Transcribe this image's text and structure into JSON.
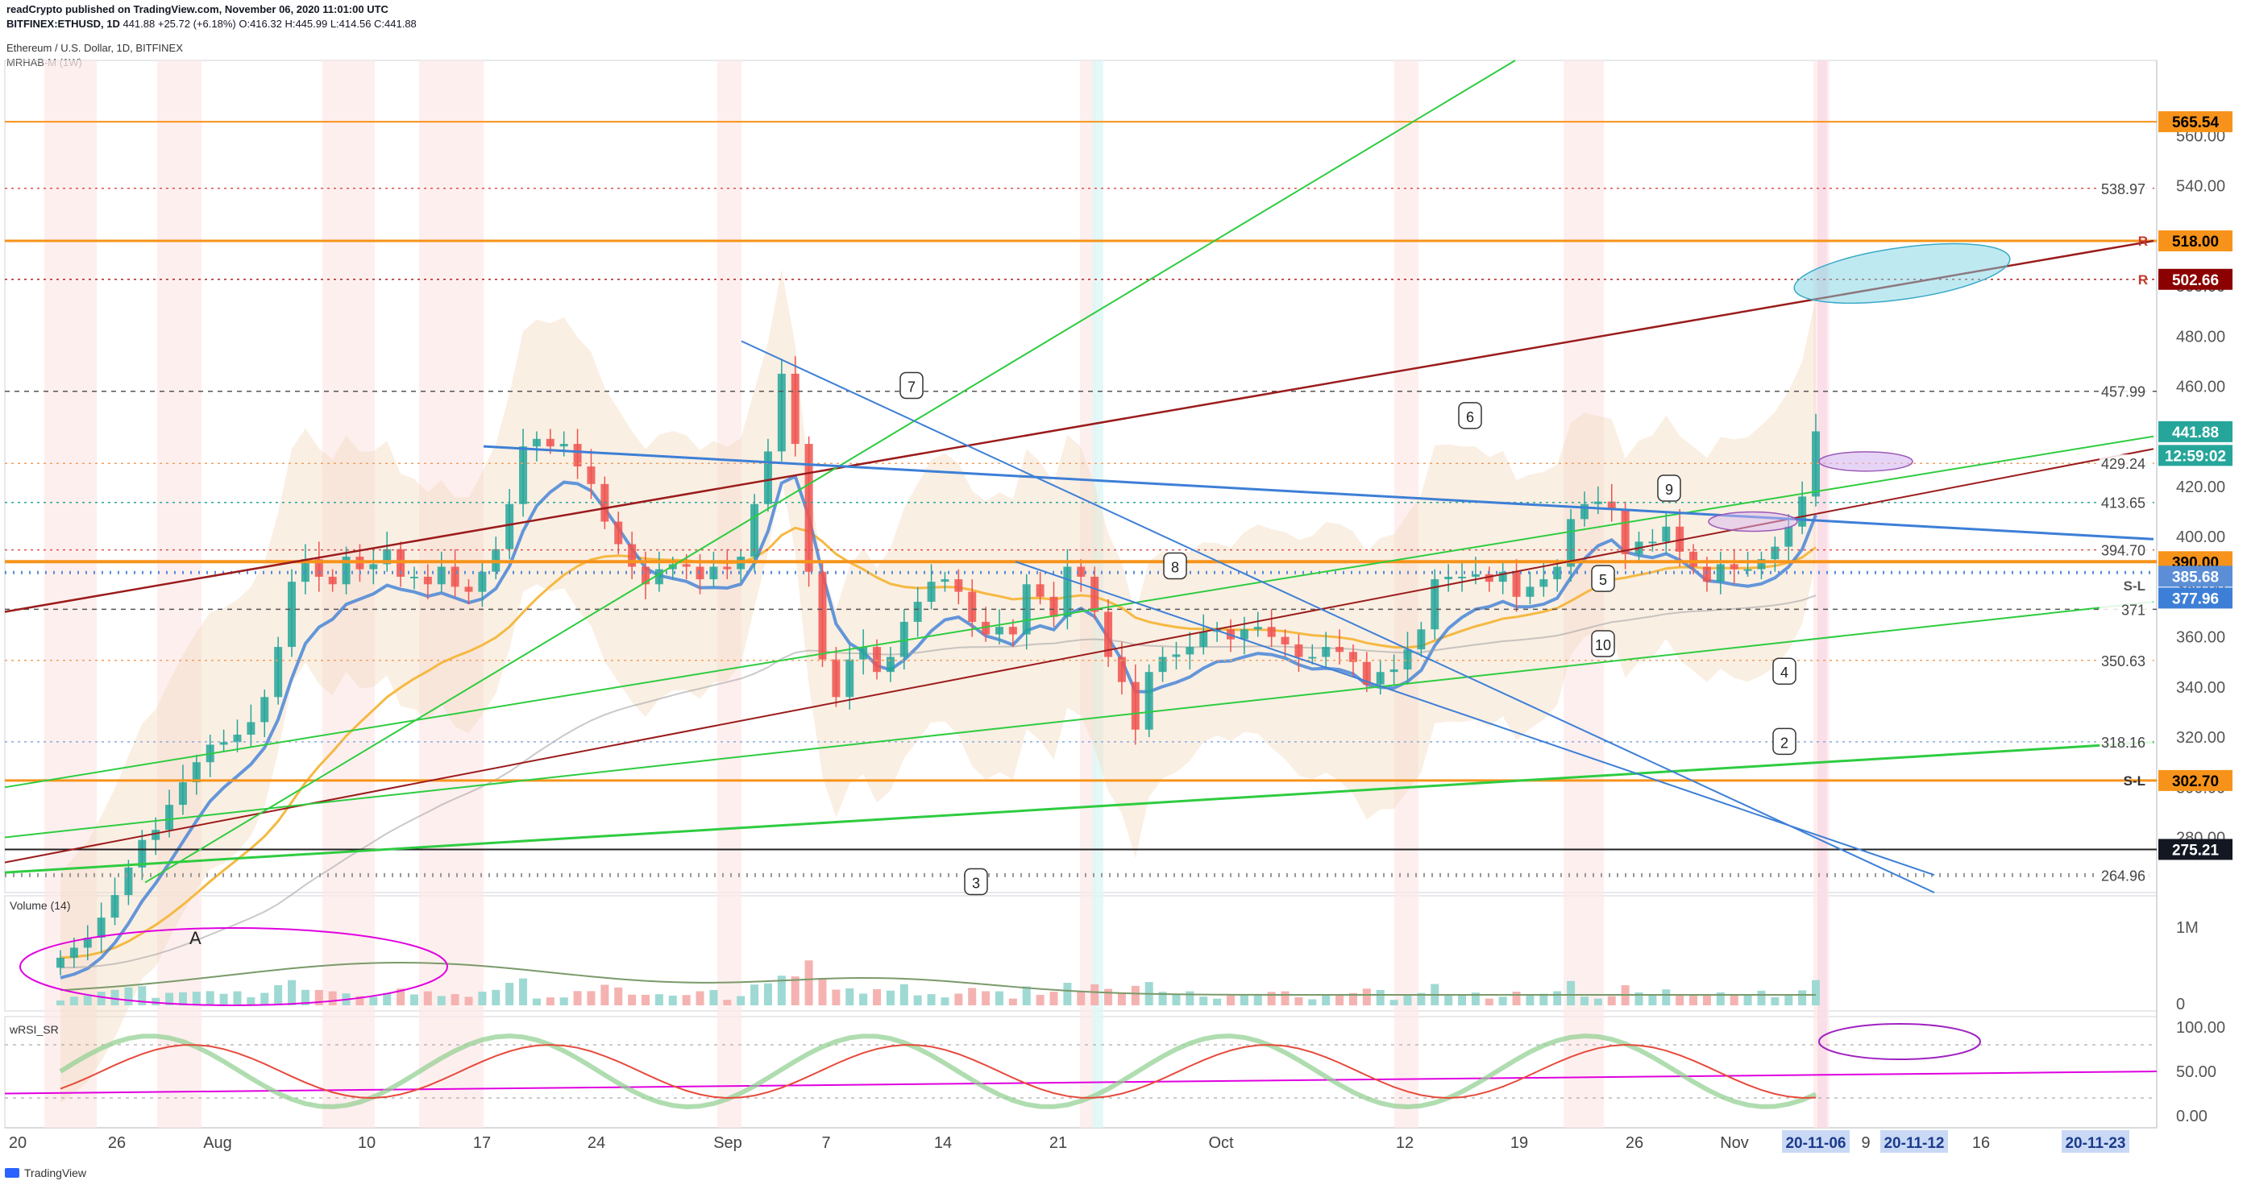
{
  "header": {
    "publisher": "readCrypto published on TradingView.com, November 06, 2020 11:01:00 UTC",
    "symbol": "BITFINEX:ETHUSD, 1D",
    "price": "441.88",
    "change": "+25.72 (+6.18%)",
    "ohlc": "O:416.32 H:445.99 L:414.56 C:441.88",
    "title": "Ethereum / U.S. Dollar, 1D, BITFINEX",
    "indicator": "MRHAB-M (1W)"
  },
  "footer": {
    "brand": "TradingView"
  },
  "panes": {
    "volume_label": "Volume (14)",
    "rsi_label": "wRSI_SR"
  },
  "colors": {
    "bull": "#26a69a",
    "bear": "#ef5350",
    "orange": "#f7931a",
    "green_line": "#2ecc40",
    "maroon": "#8b1a1a",
    "blue": "#3d7fd6",
    "price_tag": "#26a69a"
  },
  "chart_data": {
    "type": "candlestick",
    "x_axis": {
      "labels": [
        "20",
        "26",
        "Aug",
        "10",
        "17",
        "24",
        "Sep",
        "7",
        "14",
        "21",
        "Oct",
        "12",
        "19",
        "26",
        "Nov",
        "20-11-06",
        "9",
        "20-11-12",
        "16",
        "20-11-23"
      ]
    },
    "y_axis": {
      "price_ticks": [
        280,
        300,
        320,
        340,
        360,
        380,
        400,
        420,
        440,
        460,
        480,
        500,
        520,
        540,
        560
      ],
      "price_range": [
        258,
        590
      ]
    },
    "volume_axis": {
      "ticks": [
        "1M",
        "0"
      ]
    },
    "rsi_axis": {
      "ticks": [
        "100.00",
        "50.00",
        "0.00"
      ]
    },
    "candles_close": [
      232,
      236,
      240,
      248,
      257,
      268,
      279,
      283,
      293,
      302,
      310,
      317,
      318,
      321,
      326,
      336,
      356,
      382,
      391,
      384,
      381,
      392,
      387,
      389,
      395,
      384,
      384,
      381,
      388,
      380,
      378,
      386,
      395,
      413,
      436,
      439,
      436,
      437,
      428,
      421,
      406,
      397,
      388,
      381,
      387,
      389,
      388,
      383,
      388,
      387,
      392,
      413,
      434,
      465,
      437,
      386,
      351,
      336,
      351,
      356,
      346,
      352,
      366,
      374,
      382,
      383,
      378,
      366,
      361,
      364,
      361,
      381,
      376,
      368,
      388,
      384,
      370,
      352,
      342,
      323,
      346,
      352,
      353,
      356,
      362,
      363,
      359,
      363,
      364,
      360,
      357,
      352,
      352,
      356,
      354,
      350,
      341,
      346,
      347,
      355,
      363,
      383,
      384,
      384,
      385,
      382,
      386,
      376,
      380,
      383,
      388,
      407,
      413,
      414,
      411,
      393,
      398,
      398,
      404,
      394,
      388,
      382,
      389,
      387,
      387,
      391,
      396,
      404,
      416,
      442
    ],
    "price_labels": [
      "565.54",
      "538.97",
      "518.00",
      "502.66",
      "457.99",
      "441.88",
      "12:59:02",
      "429.24",
      "413.65",
      "394.70",
      "390.00",
      "385.68",
      "377.96",
      "371",
      "350.63",
      "318.16",
      "302.70",
      "275.21",
      "264.96"
    ],
    "level_tags": [
      "R",
      "R",
      "S-L",
      "S-L"
    ],
    "annotations": [
      "2",
      "3",
      "4",
      "5",
      "6",
      "7",
      "8",
      "9",
      "10",
      "A"
    ]
  }
}
